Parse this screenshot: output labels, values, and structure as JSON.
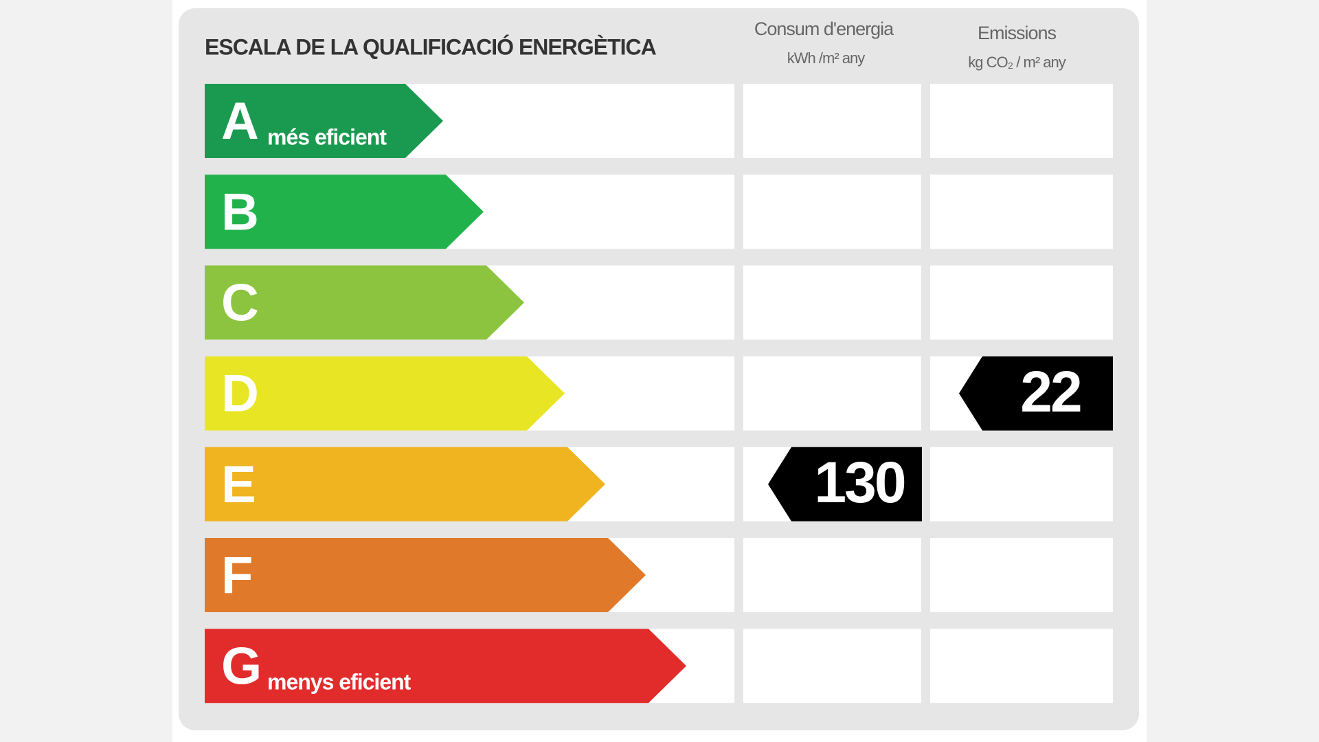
{
  "title": "ESCALA DE LA QUALIFICACIÓ ENERGÈTICA",
  "columns": [
    {
      "name": "Consum d'energia",
      "units": "kWh /m² any"
    },
    {
      "name": "Emissions",
      "units": "kg CO₂ / m² any"
    }
  ],
  "rows": [
    {
      "letter": "A",
      "label": "més eficient",
      "color": "#1a9a50",
      "consumption": null,
      "emissions": null
    },
    {
      "letter": "B",
      "label": null,
      "color": "#22b24c",
      "consumption": null,
      "emissions": null
    },
    {
      "letter": "C",
      "label": null,
      "color": "#8cc43f",
      "consumption": null,
      "emissions": null
    },
    {
      "letter": "D",
      "label": null,
      "color": "#e8e624",
      "consumption": null,
      "emissions": 22
    },
    {
      "letter": "E",
      "label": null,
      "color": "#efb420",
      "consumption": 130,
      "emissions": null
    },
    {
      "letter": "F",
      "label": null,
      "color": "#e07a2a",
      "consumption": null,
      "emissions": null
    },
    {
      "letter": "G",
      "label": "menys eficient",
      "color": "#e22c2c",
      "consumption": null,
      "emissions": null
    }
  ]
}
